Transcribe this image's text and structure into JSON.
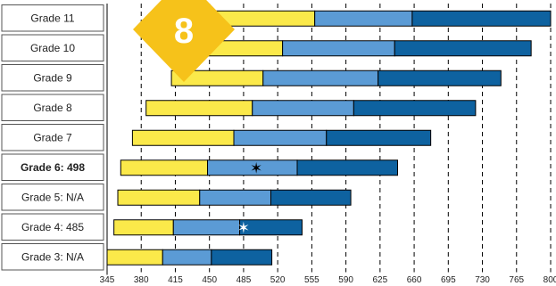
{
  "badge": {
    "label": "8",
    "color": "#f6c21a"
  },
  "chart_data": {
    "type": "bar",
    "orientation": "horizontal",
    "stacked": true,
    "grid": "vertical dashed",
    "xlim": [
      345,
      800
    ],
    "x_ticks": [
      345,
      380,
      415,
      450,
      485,
      520,
      555,
      590,
      625,
      660,
      695,
      730,
      765,
      800
    ],
    "colors": [
      "#fbe94a",
      "#5b9bd5",
      "#0e62a0"
    ],
    "rows": [
      {
        "label": "Grade 11",
        "bold": false,
        "segments": [
          432,
          558,
          658,
          800
        ]
      },
      {
        "label": "Grade 10",
        "bold": false,
        "segments": [
          425,
          525,
          640,
          780
        ]
      },
      {
        "label": "Grade 9",
        "bold": false,
        "segments": [
          411,
          505,
          623,
          749
        ]
      },
      {
        "label": "Grade 8",
        "bold": false,
        "segments": [
          385,
          494,
          598,
          723
        ]
      },
      {
        "label": "Grade 7",
        "bold": false,
        "segments": [
          371,
          475,
          570,
          677
        ]
      },
      {
        "label": "Grade 6: 498",
        "bold": true,
        "segments": [
          359,
          448,
          540,
          643
        ],
        "marker": {
          "value": 498,
          "symbol": "✶",
          "color": "#000000"
        }
      },
      {
        "label": "Grade 5: N/A",
        "bold": false,
        "segments": [
          356,
          440,
          513,
          595
        ]
      },
      {
        "label": "Grade 4: 485",
        "bold": false,
        "segments": [
          352,
          413,
          481,
          545
        ],
        "marker": {
          "value": 485,
          "symbol": "✶",
          "color": "#ffffff"
        }
      },
      {
        "label": "Grade 3: N/A",
        "bold": false,
        "segments": [
          345,
          402,
          452,
          514
        ]
      }
    ]
  }
}
